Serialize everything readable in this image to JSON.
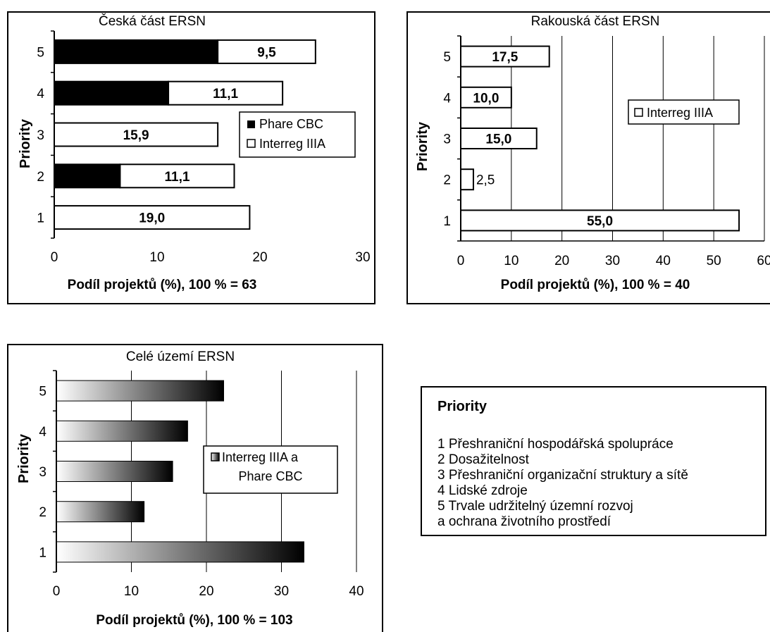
{
  "chart_data": [
    {
      "type": "bar",
      "stacked": true,
      "orientation": "horizontal",
      "title": "Česká část ERSN",
      "xlabel": "Podíl projektů (%), 100 % = 63",
      "ylabel": "Priority",
      "xlim": [
        0,
        30
      ],
      "xticks": [
        "0",
        "10",
        "20",
        "30"
      ],
      "categories": [
        "1",
        "2",
        "3",
        "4",
        "5"
      ],
      "series": [
        {
          "name": "Phare CBC",
          "values": [
            0,
            6.4,
            0,
            11.1,
            15.9
          ],
          "color": "#000000"
        },
        {
          "name": "Interreg IIIA",
          "values": [
            19.0,
            11.1,
            15.9,
            11.1,
            9.5
          ],
          "color": "#ffffff"
        }
      ],
      "data_labels": [
        "19,0",
        "11,1",
        "15,9",
        "11,1",
        "9,5"
      ],
      "grid": false,
      "legend": "right"
    },
    {
      "type": "bar",
      "orientation": "horizontal",
      "title": "Rakouská část ERSN",
      "xlabel": "Podíl projektů (%), 100 % = 40",
      "ylabel": "Priority",
      "xlim": [
        0,
        60
      ],
      "xticks": [
        "0",
        "10",
        "20",
        "30",
        "40",
        "50",
        "60"
      ],
      "categories": [
        "1",
        "2",
        "3",
        "4",
        "5"
      ],
      "series": [
        {
          "name": "Interreg IIIA",
          "values": [
            55.0,
            2.5,
            15.0,
            10.0,
            17.5
          ],
          "color": "#ffffff"
        }
      ],
      "data_labels": [
        "55,0",
        "2,5",
        "15,0",
        "10,0",
        "17,5"
      ],
      "grid": true,
      "legend": "right"
    },
    {
      "type": "bar",
      "orientation": "horizontal",
      "title": "Celé území ERSN",
      "xlabel": "Podíl projektů (%), 100 % = 103",
      "ylabel": "Priority",
      "xlim": [
        0,
        40
      ],
      "xticks": [
        "0",
        "10",
        "20",
        "30",
        "40"
      ],
      "categories": [
        "1",
        "2",
        "3",
        "4",
        "5"
      ],
      "series": [
        {
          "name": "Interreg IIIA a Phare CBC",
          "values": [
            33.0,
            11.7,
            15.5,
            17.5,
            22.3
          ]
        }
      ],
      "grid": true,
      "legend": "right"
    }
  ],
  "priority_legend": {
    "title": "Priority",
    "items": [
      "1  Přeshraniční hospodářská spolupráce",
      "2  Dosažitelnost",
      "3  Přeshraniční organizační struktury a sítě",
      "4  Lidské zdroje",
      "5  Trvale udržitelný územní rozvoj",
      "a ochrana životního prostředí"
    ]
  }
}
